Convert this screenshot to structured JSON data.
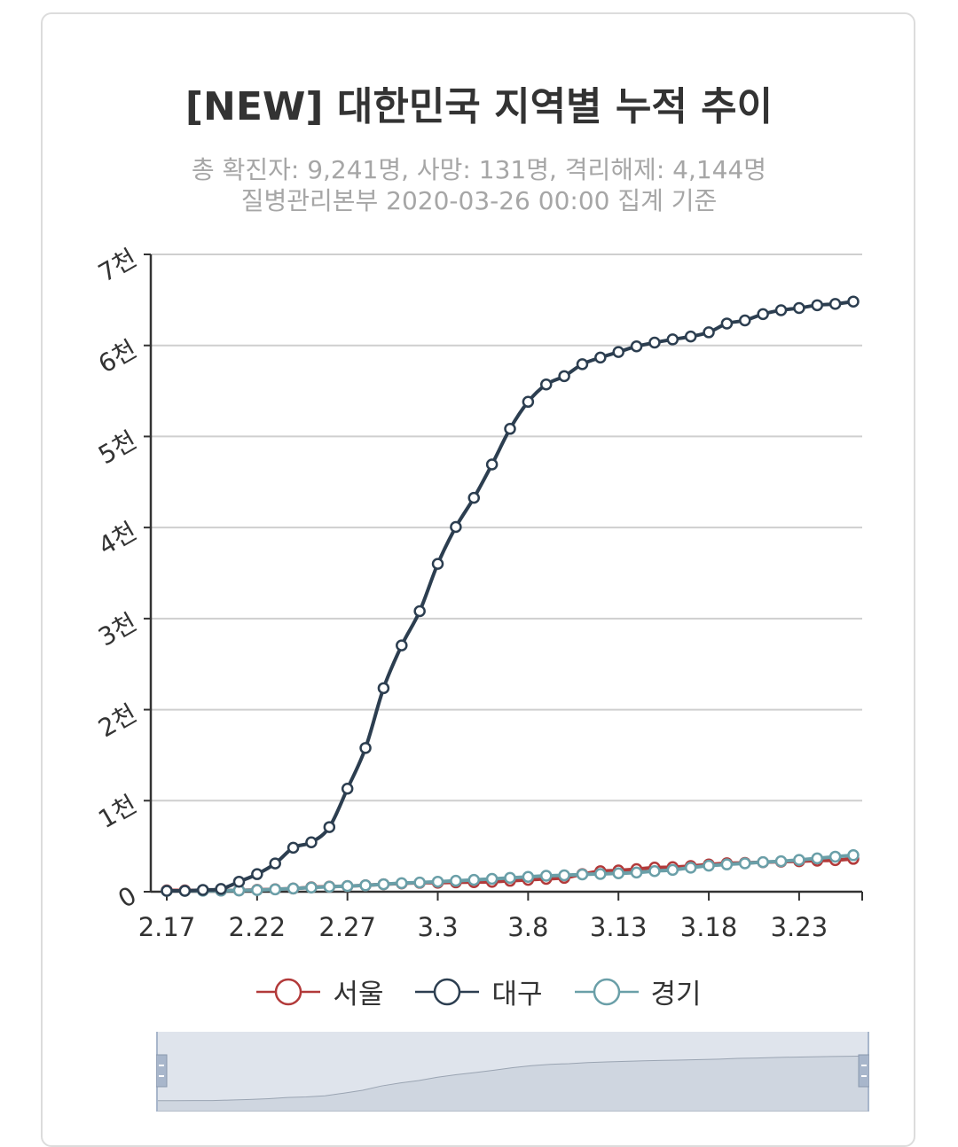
{
  "title": "[NEW] 대한민국 지역별 누적 추이",
  "subtitle_line1": "총 확진자: 9,241명, 사망: 131명, 격리해제: 4,144명",
  "subtitle_line2": "질병관리본부 2020-03-26 00:00 집계 기준",
  "colors": {
    "seoul": "#b23a3a",
    "daegu": "#2c3e50",
    "gyeonggi": "#6a9fa8",
    "grid": "#cfcfcf",
    "axis": "#333333",
    "navigator_fill": "#dfe4ec",
    "navigator_handle": "#a8b6cb"
  },
  "chart_data": {
    "type": "line",
    "title": "[NEW] 대한민국 지역별 누적 추이",
    "subtitle": "총 확진자: 9,241명, 사망: 131명, 격리해제: 4,144명 / 질병관리본부 2020-03-26 00:00 집계 기준",
    "xlabel": "",
    "ylabel": "",
    "x": [
      "2.17",
      "2.18",
      "2.19",
      "2.20",
      "2.21",
      "2.22",
      "2.23",
      "2.24",
      "2.25",
      "2.26",
      "2.27",
      "2.28",
      "2.29",
      "3.1",
      "3.2",
      "3.3",
      "3.4",
      "3.5",
      "3.6",
      "3.7",
      "3.8",
      "3.9",
      "3.10",
      "3.11",
      "3.12",
      "3.13",
      "3.14",
      "3.15",
      "3.16",
      "3.17",
      "3.18",
      "3.19",
      "3.20",
      "3.21",
      "3.22",
      "3.23",
      "3.24",
      "3.25",
      "3.26"
    ],
    "x_tick_labels": [
      "2.17",
      "2.22",
      "2.27",
      "3.3",
      "3.8",
      "3.13",
      "3.18",
      "3.23"
    ],
    "y_tick_labels": [
      "0",
      "1천",
      "2천",
      "3천",
      "4천",
      "5천",
      "6천",
      "7천"
    ],
    "ylim": [
      0,
      7000
    ],
    "grid": true,
    "legend_position": "bottom",
    "series": [
      {
        "name": "서울",
        "color_key": "seoul",
        "values": [
          14,
          14,
          14,
          14,
          15,
          21,
          27,
          35,
          49,
          56,
          62,
          70,
          82,
          91,
          98,
          99,
          103,
          105,
          108,
          120,
          130,
          141,
          152,
          193,
          225,
          234,
          248,
          265,
          270,
          282,
          299,
          313,
          317,
          324,
          330,
          335,
          341,
          347,
          361
        ]
      },
      {
        "name": "대구",
        "color_key": "daegu",
        "values": [
          10,
          10,
          20,
          30,
          110,
          193,
          310,
          483,
          543,
          710,
          1132,
          1579,
          2236,
          2705,
          3081,
          3601,
          4006,
          4326,
          4693,
          5084,
          5381,
          5571,
          5663,
          5794,
          5867,
          5928,
          5990,
          6031,
          6066,
          6098,
          6144,
          6241,
          6275,
          6344,
          6387,
          6411,
          6442,
          6456,
          6482
        ]
      },
      {
        "name": "경기",
        "color_key": "gyeonggi",
        "values": [
          10,
          10,
          11,
          12,
          14,
          18,
          26,
          35,
          46,
          55,
          62,
          70,
          82,
          94,
          101,
          110,
          120,
          130,
          141,
          152,
          163,
          175,
          180,
          190,
          195,
          202,
          211,
          226,
          240,
          264,
          286,
          300,
          312,
          325,
          335,
          349,
          366,
          385,
          401
        ]
      }
    ]
  }
}
